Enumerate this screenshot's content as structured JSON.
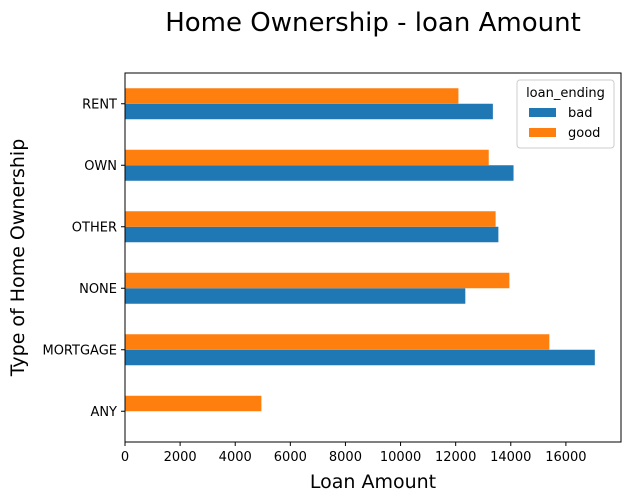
{
  "chart_data": {
    "type": "bar",
    "orientation": "horizontal",
    "title": "Home Ownership - loan Amount",
    "xlabel": "Loan Amount",
    "ylabel": "Type of Home Ownership",
    "categories": [
      "ANY",
      "MORTGAGE",
      "NONE",
      "OTHER",
      "OWN",
      "RENT"
    ],
    "series": [
      {
        "name": "bad",
        "color": "#1f77b4",
        "values": [
          null,
          17050,
          12350,
          13550,
          14100,
          13350
        ]
      },
      {
        "name": "good",
        "color": "#ff7f0e",
        "values": [
          4950,
          15400,
          13950,
          13450,
          13200,
          12100
        ]
      }
    ],
    "xlim": [
      0,
      18000
    ],
    "xticks": [
      0,
      2000,
      4000,
      6000,
      8000,
      10000,
      12000,
      14000,
      16000
    ],
    "grid": false,
    "legend": {
      "title": "loan_ending",
      "position": "top-right"
    }
  }
}
